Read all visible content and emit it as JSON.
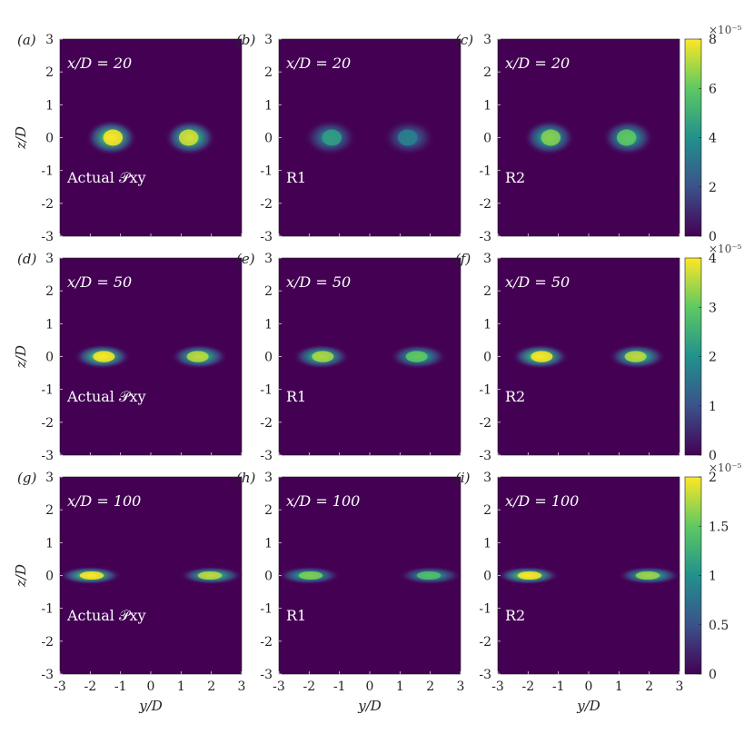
{
  "figure": {
    "x_axis_label": "y/D",
    "y_axis_label": "z/D",
    "tick_labels": [
      "-3",
      "-2",
      "-1",
      "0",
      "1",
      "2",
      "3"
    ],
    "colormap": [
      "#440154",
      "#3b528b",
      "#21918c",
      "#5ec962",
      "#fde725"
    ]
  },
  "chart_data": [
    {
      "type": "heatmap",
      "panel": "(a)",
      "title": "x/D = 20",
      "label": "Actual 𝒫xy",
      "xlim": [
        -3,
        3
      ],
      "ylim": [
        -3,
        3
      ],
      "clim": [
        0,
        8e-05
      ],
      "blobs": [
        {
          "y": -1.3,
          "z": 0.0,
          "peak": 8e-05
        },
        {
          "y": 1.3,
          "z": 0.0,
          "peak": 7.5e-05
        }
      ]
    },
    {
      "type": "heatmap",
      "panel": "(b)",
      "title": "x/D = 20",
      "label": "R1",
      "xlim": [
        -3,
        3
      ],
      "ylim": [
        -3,
        3
      ],
      "clim": [
        0,
        8e-05
      ],
      "blobs": [
        {
          "y": -1.3,
          "z": 0.0,
          "peak": 4.5e-05
        },
        {
          "y": 1.3,
          "z": 0.0,
          "peak": 3.5e-05
        }
      ]
    },
    {
      "type": "heatmap",
      "panel": "(c)",
      "title": "x/D = 20",
      "label": "R2",
      "xlim": [
        -3,
        3
      ],
      "ylim": [
        -3,
        3
      ],
      "clim": [
        0,
        8e-05
      ],
      "blobs": [
        {
          "y": -1.3,
          "z": 0.0,
          "peak": 6.5e-05
        },
        {
          "y": 1.3,
          "z": 0.0,
          "peak": 6e-05
        }
      ]
    },
    {
      "type": "heatmap",
      "panel": "(d)",
      "title": "x/D = 50",
      "label": "Actual 𝒫xy",
      "xlim": [
        -3,
        3
      ],
      "ylim": [
        -3,
        3
      ],
      "clim": [
        0,
        4e-05
      ],
      "blobs": [
        {
          "y": -1.6,
          "z": 0.0,
          "peak": 4e-05
        },
        {
          "y": 1.6,
          "z": 0.0,
          "peak": 3.6e-05
        }
      ]
    },
    {
      "type": "heatmap",
      "panel": "(e)",
      "title": "x/D = 50",
      "label": "R1",
      "xlim": [
        -3,
        3
      ],
      "ylim": [
        -3,
        3
      ],
      "clim": [
        0,
        4e-05
      ],
      "blobs": [
        {
          "y": -1.6,
          "z": 0.0,
          "peak": 3.5e-05
        },
        {
          "y": 1.6,
          "z": 0.0,
          "peak": 3e-05
        }
      ]
    },
    {
      "type": "heatmap",
      "panel": "(f)",
      "title": "x/D = 50",
      "label": "R2",
      "xlim": [
        -3,
        3
      ],
      "ylim": [
        -3,
        3
      ],
      "clim": [
        0,
        4e-05
      ],
      "blobs": [
        {
          "y": -1.6,
          "z": 0.0,
          "peak": 4e-05
        },
        {
          "y": 1.6,
          "z": 0.0,
          "peak": 3.6e-05
        }
      ]
    },
    {
      "type": "heatmap",
      "panel": "(g)",
      "title": "x/D = 100",
      "label": "Actual 𝒫xy",
      "xlim": [
        -3,
        3
      ],
      "ylim": [
        -3,
        3
      ],
      "clim": [
        0,
        2e-05
      ],
      "blobs": [
        {
          "y": -2.0,
          "z": 0.0,
          "peak": 2e-05
        },
        {
          "y": 2.0,
          "z": 0.0,
          "peak": 1.8e-05
        }
      ]
    },
    {
      "type": "heatmap",
      "panel": "(h)",
      "title": "x/D = 100",
      "label": "R1",
      "xlim": [
        -3,
        3
      ],
      "ylim": [
        -3,
        3
      ],
      "clim": [
        0,
        2e-05
      ],
      "blobs": [
        {
          "y": -2.0,
          "z": 0.0,
          "peak": 1.6e-05
        },
        {
          "y": 2.0,
          "z": 0.0,
          "peak": 1.4e-05
        }
      ]
    },
    {
      "type": "heatmap",
      "panel": "(i)",
      "title": "x/D = 100",
      "label": "R2",
      "xlim": [
        -3,
        3
      ],
      "ylim": [
        -3,
        3
      ],
      "clim": [
        0,
        2e-05
      ],
      "blobs": [
        {
          "y": -2.0,
          "z": 0.0,
          "peak": 2e-05
        },
        {
          "y": 2.0,
          "z": 0.0,
          "peak": 1.7e-05
        }
      ]
    }
  ],
  "colorbars": [
    {
      "exponent": "×10⁻⁵",
      "ticks": [
        "0",
        "2",
        "4",
        "6",
        "8"
      ],
      "range": [
        0,
        8
      ]
    },
    {
      "exponent": "×10⁻⁵",
      "ticks": [
        "0",
        "1",
        "2",
        "3",
        "4"
      ],
      "range": [
        0,
        4
      ]
    },
    {
      "exponent": "×10⁻⁵",
      "ticks": [
        "0",
        "0.5",
        "1",
        "1.5",
        "2"
      ],
      "range": [
        0,
        2
      ]
    }
  ]
}
